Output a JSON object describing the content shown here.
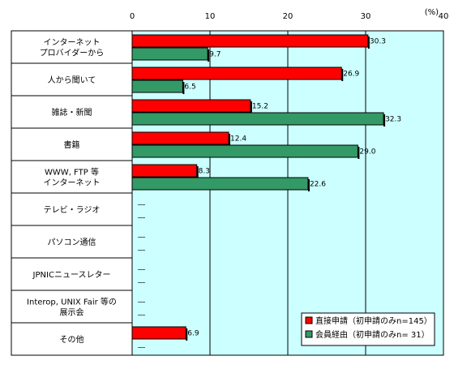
{
  "chart_data": {
    "type": "bar",
    "orientation": "horizontal",
    "unit": "(%)",
    "xlim": [
      0,
      40
    ],
    "ticks": [
      "0",
      "10",
      "20",
      "30",
      "40"
    ],
    "grid": true,
    "legend_position": "bottom-right",
    "categories": [
      [
        "インターネット",
        "プロバイダーから"
      ],
      [
        "人から聞いて"
      ],
      [
        "雑誌・新聞"
      ],
      [
        "書籍"
      ],
      [
        "WWW, FTP 等",
        "インターネット"
      ],
      [
        "テレビ・ラジオ"
      ],
      [
        "パソコン通信"
      ],
      [
        "JPNICニュースレター"
      ],
      [
        "Interop, UNIX Fair 等の",
        "展示会"
      ],
      [
        "その他"
      ]
    ],
    "series": [
      {
        "name": "直接申請（初申請のみn=145）",
        "color": "#ff0000",
        "values": [
          30.3,
          26.9,
          15.2,
          12.4,
          8.3,
          null,
          null,
          null,
          null,
          6.9
        ],
        "labels": [
          "30.3",
          "26.9",
          "15.2",
          "12.4",
          "8.3",
          "",
          "",
          "",
          "",
          "6.9"
        ]
      },
      {
        "name": "会員経由（初申請のみn= 31）",
        "color": "#339966",
        "values": [
          9.7,
          6.5,
          32.3,
          29.0,
          22.6,
          null,
          null,
          null,
          null,
          null
        ],
        "labels": [
          "9.7",
          "6.5",
          "32.3",
          "29.0",
          "22.6",
          "",
          "",
          "",
          "",
          ""
        ]
      }
    ],
    "zero_marker": "―"
  }
}
